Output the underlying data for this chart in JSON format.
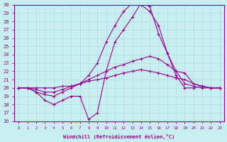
{
  "xlabel": "Windchill (Refroidissement éolien,°C)",
  "xlim": [
    -0.5,
    23.5
  ],
  "ylim": [
    16,
    30
  ],
  "yticks": [
    16,
    17,
    18,
    19,
    20,
    21,
    22,
    23,
    24,
    25,
    26,
    27,
    28,
    29,
    30
  ],
  "xticks": [
    0,
    1,
    2,
    3,
    4,
    5,
    6,
    7,
    8,
    9,
    10,
    11,
    12,
    13,
    14,
    15,
    16,
    17,
    18,
    19,
    20,
    21,
    22,
    23
  ],
  "bg_color": "#c8eef0",
  "line_color": "#990099",
  "grid_color": "#b0dde0",
  "line_a_x": [
    0,
    1,
    2,
    3,
    4,
    5,
    6,
    7,
    8,
    9,
    10,
    11,
    12,
    13,
    14,
    15,
    16,
    17,
    18,
    19,
    20,
    21,
    22,
    23
  ],
  "line_a_y": [
    20.0,
    20.0,
    19.5,
    18.5,
    18.0,
    18.5,
    19.0,
    19.0,
    16.2,
    17.0,
    22.0,
    25.5,
    27.0,
    28.5,
    30.2,
    29.8,
    26.5,
    24.2,
    21.5,
    20.0,
    20.0,
    20.2,
    20.0,
    20.0
  ],
  "line_b_x": [
    0,
    1,
    2,
    3,
    4,
    5,
    6,
    7,
    8,
    9,
    10,
    11,
    12,
    13,
    14,
    15,
    16,
    17,
    18,
    19,
    20,
    21,
    22,
    23
  ],
  "line_b_y": [
    20.0,
    20.0,
    19.5,
    19.2,
    19.0,
    19.5,
    20.0,
    20.5,
    21.5,
    23.0,
    25.5,
    27.5,
    29.2,
    30.2,
    30.0,
    29.2,
    27.5,
    24.2,
    22.0,
    20.5,
    20.2,
    20.0,
    20.0,
    20.0
  ],
  "line_c_x": [
    0,
    1,
    2,
    3,
    4,
    5,
    6,
    7,
    8,
    9,
    10,
    11,
    12,
    13,
    14,
    15,
    16,
    17,
    18,
    19,
    20,
    21,
    22,
    23
  ],
  "line_c_y": [
    20.0,
    20.0,
    19.8,
    19.5,
    19.5,
    19.8,
    20.2,
    20.5,
    21.0,
    21.5,
    22.0,
    22.5,
    22.8,
    23.2,
    23.5,
    23.8,
    23.5,
    22.8,
    22.0,
    21.8,
    20.5,
    20.2,
    20.0,
    20.0
  ],
  "line_d_x": [
    0,
    1,
    2,
    3,
    4,
    5,
    6,
    7,
    8,
    9,
    10,
    11,
    12,
    13,
    14,
    15,
    16,
    17,
    18,
    19,
    20,
    21,
    22,
    23
  ],
  "line_d_y": [
    20.0,
    20.0,
    20.0,
    20.0,
    20.0,
    20.2,
    20.2,
    20.5,
    20.8,
    21.0,
    21.2,
    21.5,
    21.8,
    22.0,
    22.2,
    22.0,
    21.8,
    21.5,
    21.2,
    21.0,
    20.5,
    20.2,
    20.0,
    20.0
  ]
}
